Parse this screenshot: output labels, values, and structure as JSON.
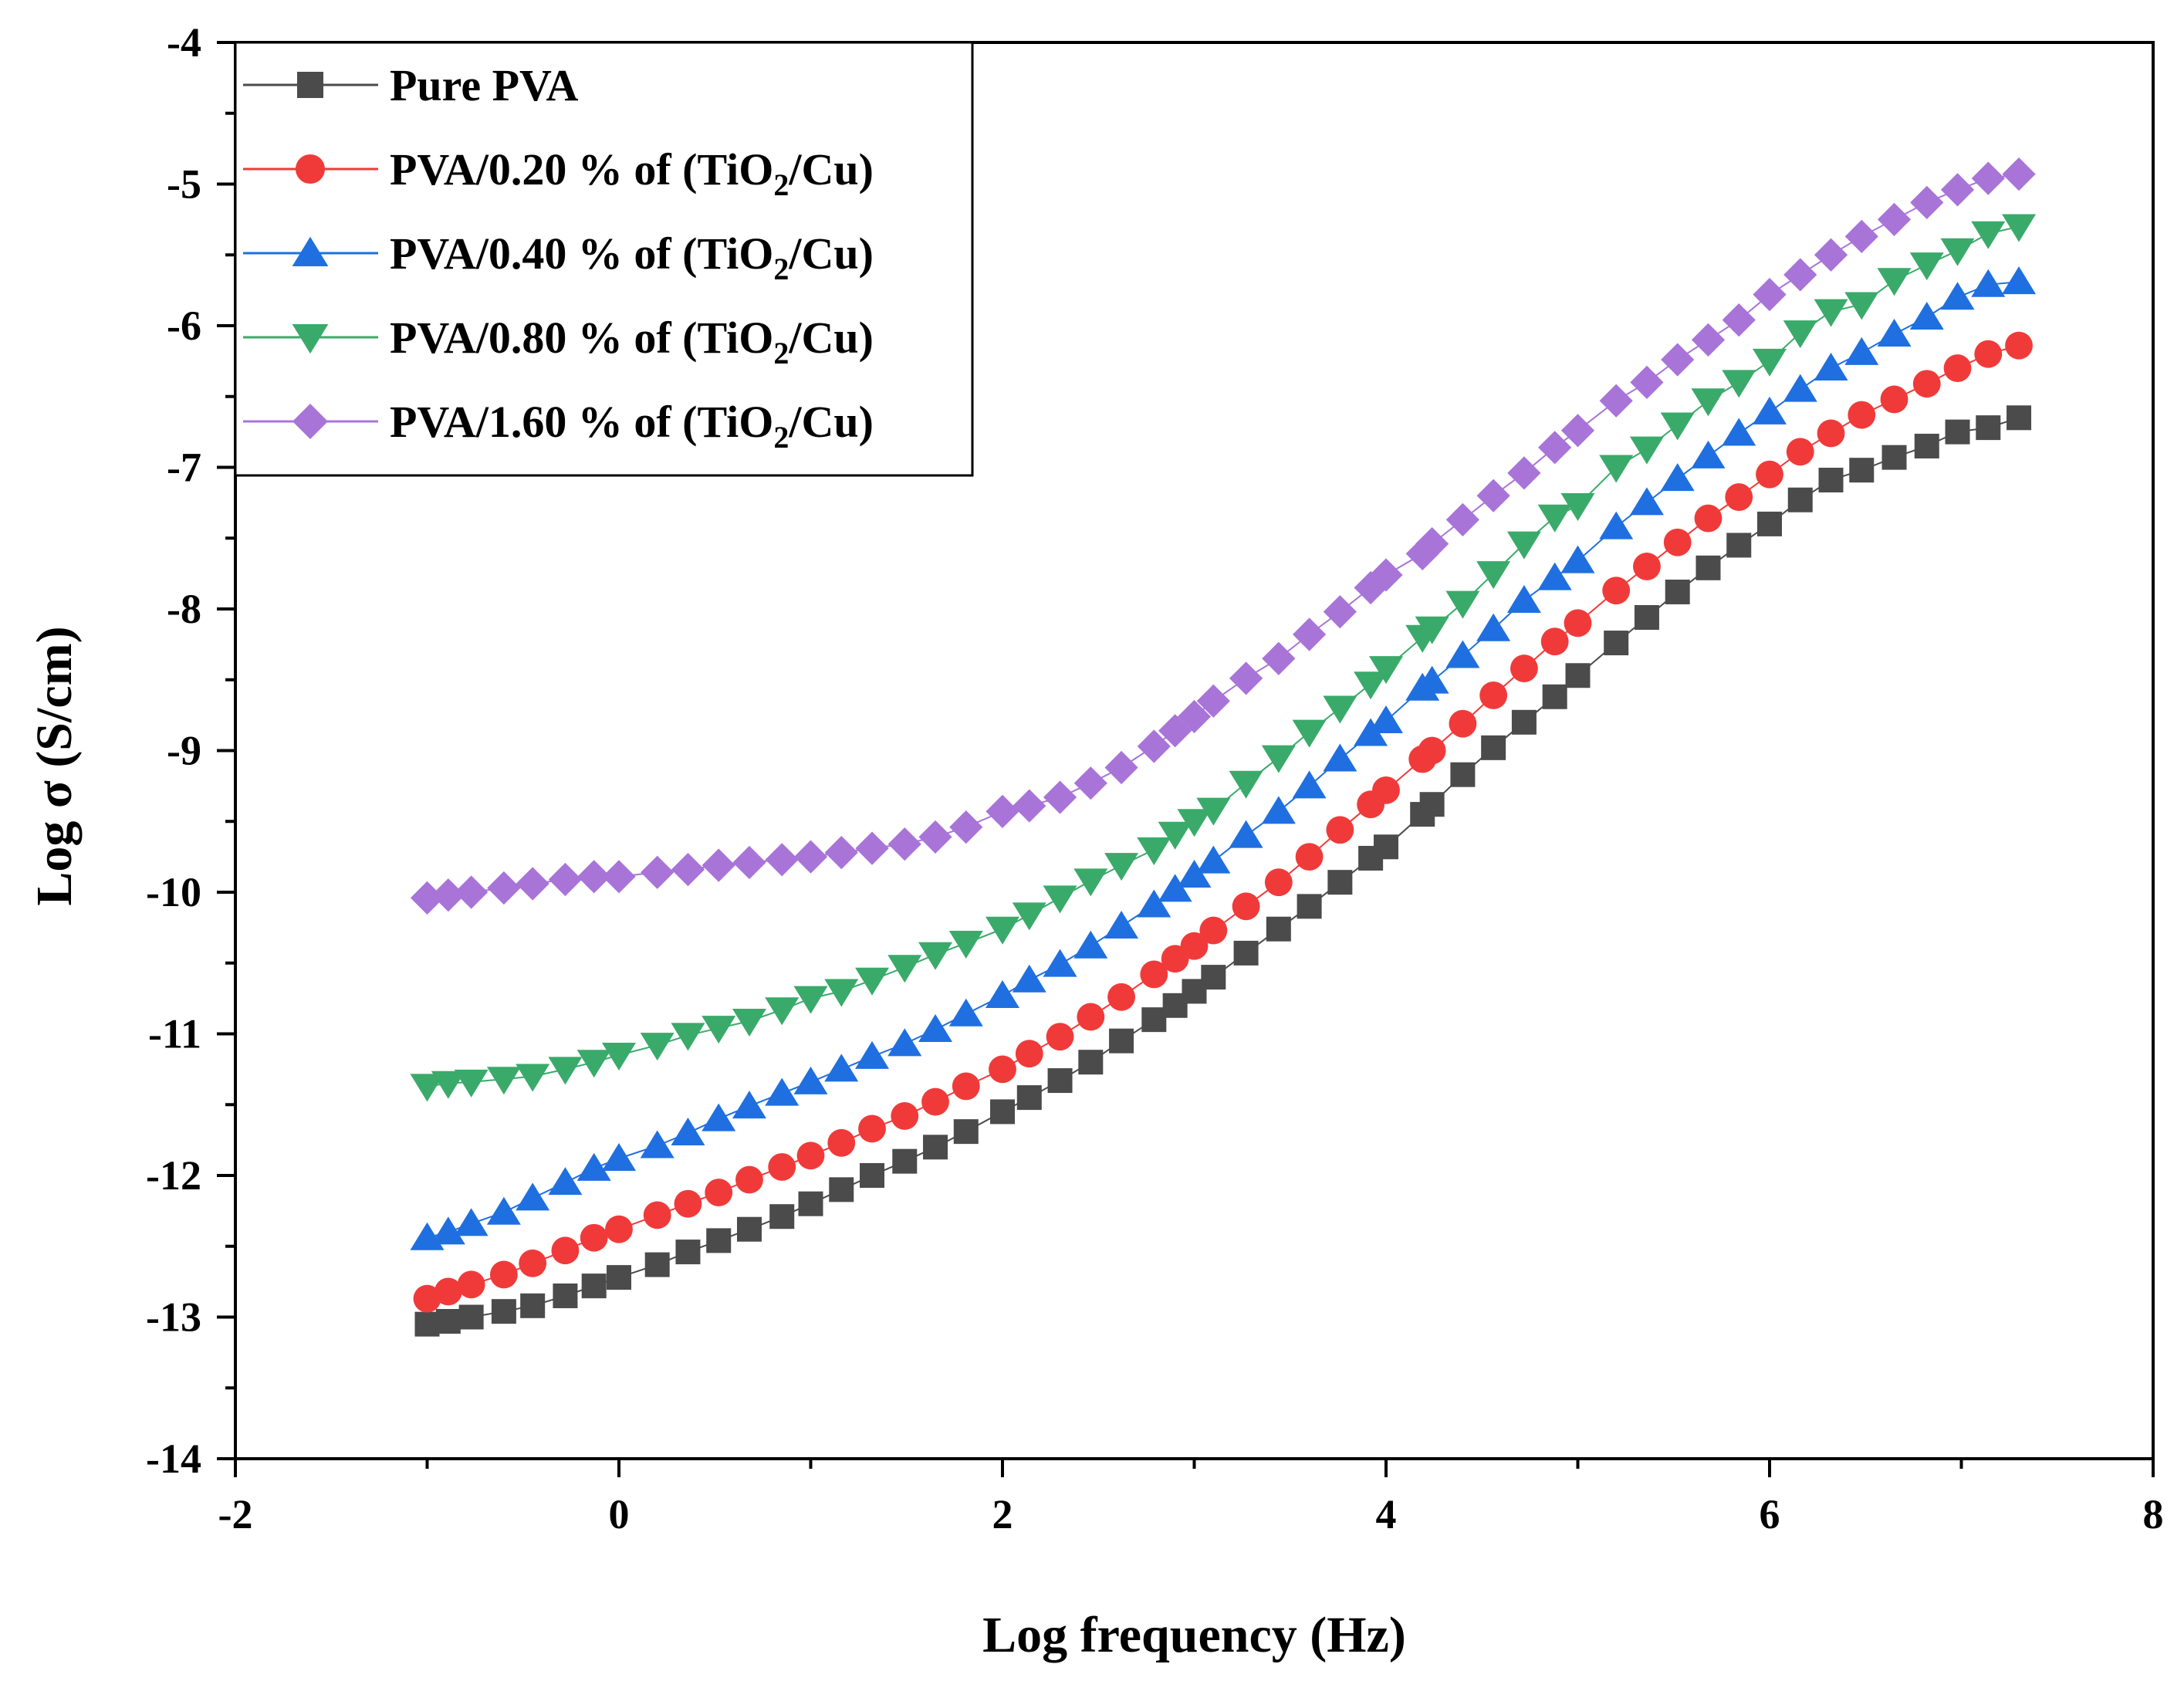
{
  "chart_data": {
    "type": "scatter",
    "title": "",
    "xlabel": "Log frequency (Hz)",
    "ylabel": "Log σ (S/cm)",
    "xlim": [
      -2,
      8
    ],
    "ylim": [
      -14,
      -4
    ],
    "x_ticks": [
      -2,
      0,
      2,
      4,
      6,
      8
    ],
    "y_ticks": [
      -14,
      -13,
      -12,
      -11,
      -10,
      -9,
      -8,
      -7,
      -6,
      -5,
      -4
    ],
    "x_tick_labels": [
      "-2",
      "0",
      "2",
      "4",
      "6",
      "8"
    ],
    "y_tick_labels": [
      "-14",
      "-13",
      "-12",
      "-11",
      "-10",
      "-9",
      "-8",
      "-7",
      "-6",
      "-5",
      "-4"
    ],
    "grid": false,
    "legend_position": "top-left",
    "x": [
      -1.0,
      -0.89,
      -0.77,
      -0.6,
      -0.45,
      -0.28,
      -0.13,
      0.0,
      0.2,
      0.36,
      0.52,
      0.68,
      0.85,
      1.0,
      1.16,
      1.32,
      1.49,
      1.65,
      1.81,
      2.0,
      2.14,
      2.3,
      2.46,
      2.62,
      2.79,
      2.9,
      3.0,
      3.1,
      3.27,
      3.44,
      3.6,
      3.76,
      3.92,
      4.0,
      4.19,
      4.24,
      4.4,
      4.56,
      4.72,
      4.88,
      5.0,
      5.2,
      5.36,
      5.52,
      5.68,
      5.84,
      6.0,
      6.16,
      6.32,
      6.48,
      6.65,
      6.82,
      6.98,
      7.14,
      7.3
    ],
    "series": [
      {
        "name_main": "Pure PVA",
        "name_sub": "",
        "name_end": "",
        "color": "#4b4b4b",
        "marker": "square",
        "values": [
          -13.05,
          -13.03,
          -13.0,
          -12.96,
          -12.92,
          -12.85,
          -12.78,
          -12.72,
          -12.63,
          -12.54,
          -12.46,
          -12.38,
          -12.29,
          -12.2,
          -12.1,
          -12.0,
          -11.9,
          -11.8,
          -11.69,
          -11.55,
          -11.45,
          -11.33,
          -11.2,
          -11.05,
          -10.9,
          -10.8,
          -10.7,
          -10.6,
          -10.43,
          -10.26,
          -10.1,
          -9.93,
          -9.76,
          -9.68,
          -9.45,
          -9.38,
          -9.17,
          -8.98,
          -8.8,
          -8.62,
          -8.47,
          -8.24,
          -8.06,
          -7.88,
          -7.71,
          -7.55,
          -7.4,
          -7.23,
          -7.09,
          -7.02,
          -6.93,
          -6.85,
          -6.75,
          -6.72,
          -6.65
        ]
      },
      {
        "name_main": "PVA/0.20 % of (TiO",
        "name_sub": "2",
        "name_end": "/Cu)",
        "color": "#f03a3a",
        "marker": "circle",
        "values": [
          -12.87,
          -12.82,
          -12.77,
          -12.7,
          -12.62,
          -12.53,
          -12.44,
          -12.38,
          -12.28,
          -12.2,
          -12.12,
          -12.03,
          -11.94,
          -11.86,
          -11.77,
          -11.67,
          -11.58,
          -11.48,
          -11.37,
          -11.25,
          -11.14,
          -11.02,
          -10.88,
          -10.74,
          -10.58,
          -10.47,
          -10.38,
          -10.27,
          -10.1,
          -9.93,
          -9.75,
          -9.56,
          -9.38,
          -9.28,
          -9.06,
          -9.0,
          -8.81,
          -8.61,
          -8.42,
          -8.23,
          -8.1,
          -7.87,
          -7.7,
          -7.53,
          -7.36,
          -7.21,
          -7.05,
          -6.89,
          -6.76,
          -6.63,
          -6.52,
          -6.41,
          -6.3,
          -6.2,
          -6.14
        ]
      },
      {
        "name_main": "PVA/0.40 % of (TiO",
        "name_sub": "2",
        "name_end": "/Cu)",
        "color": "#1f6fe0",
        "marker": "triangle-up",
        "values": [
          -12.44,
          -12.4,
          -12.34,
          -12.26,
          -12.16,
          -12.05,
          -11.95,
          -11.88,
          -11.79,
          -11.7,
          -11.6,
          -11.51,
          -11.42,
          -11.34,
          -11.25,
          -11.16,
          -11.07,
          -10.97,
          -10.86,
          -10.73,
          -10.62,
          -10.51,
          -10.38,
          -10.24,
          -10.09,
          -9.98,
          -9.88,
          -9.78,
          -9.6,
          -9.43,
          -9.25,
          -9.06,
          -8.88,
          -8.79,
          -8.56,
          -8.51,
          -8.33,
          -8.14,
          -7.94,
          -7.78,
          -7.66,
          -7.42,
          -7.25,
          -7.08,
          -6.92,
          -6.76,
          -6.61,
          -6.45,
          -6.3,
          -6.19,
          -6.06,
          -5.94,
          -5.8,
          -5.71,
          -5.69
        ]
      },
      {
        "name_main": "PVA/0.80 % of (TiO",
        "name_sub": "2",
        "name_end": "/Cu)",
        "color": "#3aaa6a",
        "marker": "triangle-down",
        "values": [
          -11.37,
          -11.35,
          -11.34,
          -11.32,
          -11.3,
          -11.25,
          -11.2,
          -11.15,
          -11.08,
          -11.01,
          -10.96,
          -10.91,
          -10.83,
          -10.75,
          -10.7,
          -10.62,
          -10.53,
          -10.44,
          -10.36,
          -10.26,
          -10.16,
          -10.04,
          -9.92,
          -9.81,
          -9.7,
          -9.59,
          -9.5,
          -9.42,
          -9.23,
          -9.05,
          -8.87,
          -8.7,
          -8.53,
          -8.42,
          -8.2,
          -8.14,
          -7.96,
          -7.75,
          -7.54,
          -7.35,
          -7.27,
          -7.0,
          -6.87,
          -6.7,
          -6.53,
          -6.4,
          -6.25,
          -6.05,
          -5.9,
          -5.85,
          -5.68,
          -5.57,
          -5.47,
          -5.35,
          -5.3
        ]
      },
      {
        "name_main": "PVA/1.60 % of (TiO",
        "name_sub": "2",
        "name_end": "/Cu)",
        "color": "#a874d8",
        "marker": "diamond",
        "values": [
          -10.04,
          -10.02,
          -10.0,
          -9.97,
          -9.94,
          -9.91,
          -9.89,
          -9.89,
          -9.86,
          -9.84,
          -9.81,
          -9.79,
          -9.77,
          -9.75,
          -9.72,
          -9.69,
          -9.66,
          -9.61,
          -9.54,
          -9.43,
          -9.39,
          -9.33,
          -9.23,
          -9.12,
          -8.97,
          -8.86,
          -8.76,
          -8.65,
          -8.49,
          -8.35,
          -8.18,
          -8.02,
          -7.85,
          -7.76,
          -7.61,
          -7.54,
          -7.37,
          -7.2,
          -7.04,
          -6.86,
          -6.74,
          -6.53,
          -6.4,
          -6.24,
          -6.1,
          -5.96,
          -5.78,
          -5.64,
          -5.5,
          -5.37,
          -5.25,
          -5.13,
          -5.04,
          -4.96,
          -4.93
        ]
      }
    ]
  }
}
